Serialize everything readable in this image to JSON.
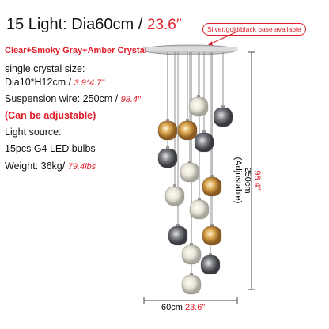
{
  "title": {
    "main": "15 Light: Dia60cm /",
    "inch": "23.6″"
  },
  "badge": "Silver/gold/black base available",
  "specs": [
    {
      "text": "Clear+Smoky Gray+Amber Crystal"
    },
    {
      "text": "single crystal size:"
    },
    {
      "text": "Dia10*H12cm /",
      "inch": "3.9*4.7″"
    },
    {
      "text": "Suspension wire: 250cm /",
      "inch": "98.4″"
    },
    {
      "text": "(Can be adjustable)"
    },
    {
      "text": "Light source:"
    },
    {
      "text": "15pcs G4 LED bulbs"
    },
    {
      "text": "Weight: 36kg/",
      "inch": "79.4lbs"
    }
  ],
  "height_dim": {
    "inch": "98.4″",
    "cm": "250cm",
    "note": "(Adjustable)"
  },
  "width_dim": {
    "cm": "60cm",
    "inch": "23.6″"
  }
}
